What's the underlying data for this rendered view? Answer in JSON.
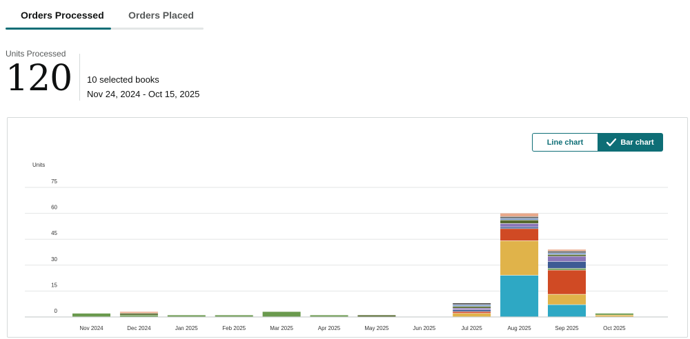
{
  "tabs": [
    {
      "label": "Orders Processed",
      "active": true
    },
    {
      "label": "Orders Placed",
      "active": false
    }
  ],
  "kpi": {
    "label": "Units Processed",
    "value": "120",
    "books": "10 selected books",
    "date_range": "Nov 24, 2024 - Oct 15, 2025"
  },
  "toggle": {
    "line_label": "Line chart",
    "bar_label": "Bar chart",
    "selected": "Bar chart"
  },
  "colors": {
    "accent": "#0e6e76",
    "book_1": "#2ea8c4",
    "book_2": "#e0b34a",
    "book_3": "#d04a24",
    "book_4": "#6a9a4e",
    "book_5": "#3e5b94",
    "book_6": "#8b76b8",
    "book_7": "#55692e",
    "book_8": "#7f9eca",
    "book_9": "#5a5a5a",
    "book_10": "#e8a88a"
  },
  "chart_data": {
    "type": "bar",
    "stacked": true,
    "ylabel": "Units",
    "ylim": [
      0,
      75
    ],
    "yticks": [
      0,
      15,
      30,
      45,
      60,
      75
    ],
    "grid": true,
    "categories": [
      "Nov 2024",
      "Dec 2024",
      "Jan 2025",
      "Feb 2025",
      "Mar 2025",
      "Apr 2025",
      "May 2025",
      "Jun 2025",
      "Jul 2025",
      "Aug 2025",
      "Sep 2025",
      "Oct 2025"
    ],
    "series": [
      {
        "color": "#2ea8c4",
        "values": [
          0,
          0,
          0,
          0,
          0,
          0,
          0,
          0,
          0,
          24,
          7,
          0
        ]
      },
      {
        "color": "#e0b34a",
        "values": [
          0,
          0,
          0,
          0,
          0,
          0,
          0,
          0,
          2,
          20,
          6,
          1
        ]
      },
      {
        "color": "#d04a24",
        "values": [
          0,
          0,
          0,
          0,
          0,
          0,
          0,
          0,
          1,
          7,
          14,
          0
        ]
      },
      {
        "color": "#6a9a4e",
        "values": [
          2,
          1,
          1,
          1,
          3,
          1,
          0,
          0,
          0,
          0,
          1,
          1
        ]
      },
      {
        "color": "#3e5b94",
        "values": [
          0,
          0,
          0,
          0,
          0,
          0,
          0,
          0,
          1,
          1,
          4,
          0
        ]
      },
      {
        "color": "#8b76b8",
        "values": [
          0,
          0,
          0,
          0,
          0,
          0,
          0,
          0,
          1,
          2,
          3,
          0
        ]
      },
      {
        "color": "#55692e",
        "values": [
          0,
          1,
          0,
          0,
          0,
          0,
          1,
          0,
          1,
          2,
          1,
          0
        ]
      },
      {
        "color": "#7f9eca",
        "values": [
          0,
          0,
          0,
          0,
          0,
          0,
          0,
          0,
          1,
          1,
          1,
          0
        ]
      },
      {
        "color": "#5a5a5a",
        "values": [
          0,
          0,
          0,
          0,
          0,
          0,
          0,
          0,
          1,
          1,
          1,
          0
        ]
      },
      {
        "color": "#e8a88a",
        "values": [
          0,
          1,
          0,
          0,
          0,
          0,
          0,
          0,
          0,
          2,
          1,
          0
        ]
      }
    ]
  }
}
